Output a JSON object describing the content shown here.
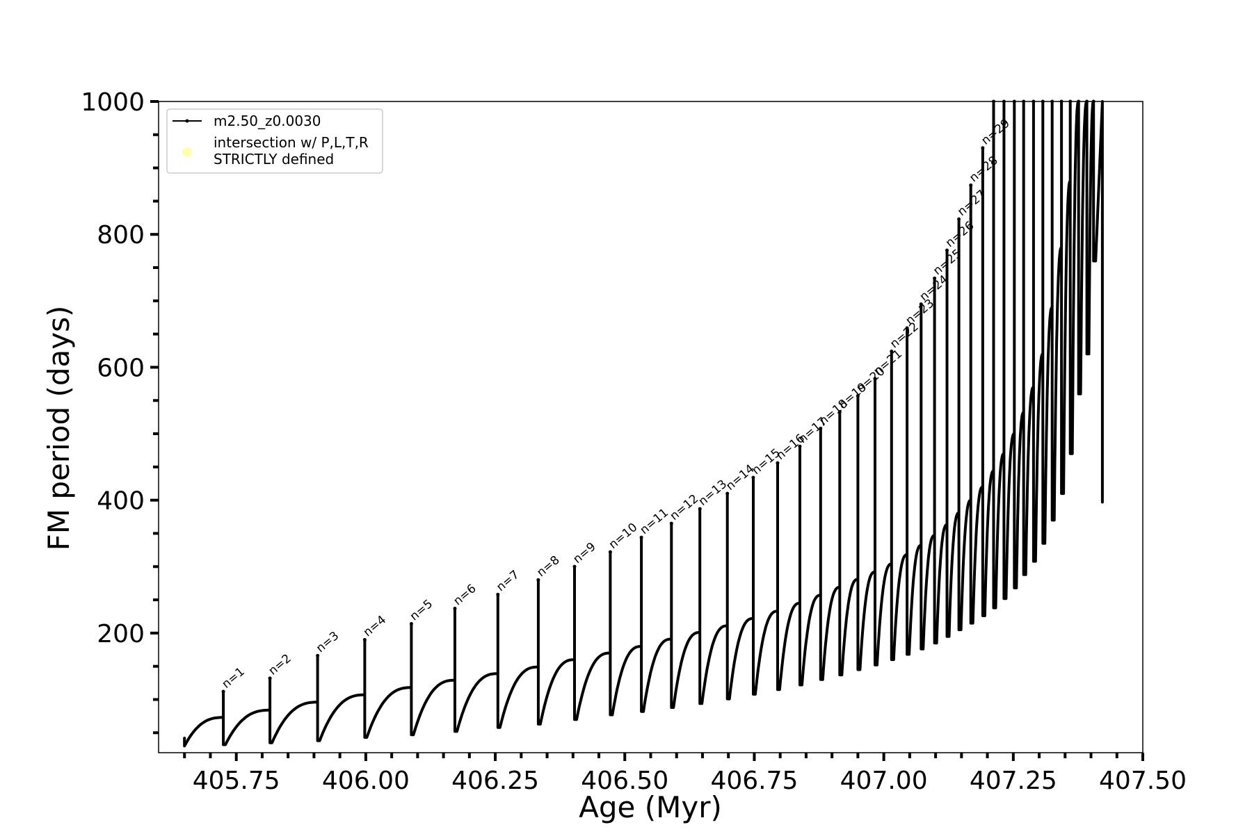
{
  "chart_data": {
    "type": "line",
    "xlabel": "Age (Myr)",
    "ylabel": "FM period (days)",
    "xlim": [
      405.6,
      407.5
    ],
    "ylim": [
      20,
      1000
    ],
    "x_ticks": [
      405.75,
      406.0,
      406.25,
      406.5,
      406.75,
      407.0,
      407.25,
      407.5
    ],
    "x_tick_labels": [
      "405.75",
      "406.00",
      "406.25",
      "406.50",
      "406.75",
      "407.00",
      "407.25",
      "407.50"
    ],
    "x_minor_step": 0.05,
    "y_ticks": [
      200,
      400,
      600,
      800,
      1000
    ],
    "y_tick_labels": [
      "200",
      "400",
      "600",
      "800",
      "1000"
    ],
    "y_minor_step": 50,
    "grid": false,
    "legend_position": "top-left",
    "legend": [
      {
        "label": "m2.50_z0.0030",
        "color": "#000000",
        "marker": "line-dot"
      },
      {
        "label": "intersection w/ P,L,T,R\nSTRICTLY defined",
        "color": "#ffffb3",
        "marker": "dot"
      }
    ],
    "start": {
      "age": 405.65,
      "period_low": 30,
      "period_high": 42
    },
    "pulses": [
      {
        "label": "n=1",
        "age": 405.725,
        "base": 73,
        "peak": 112,
        "dip": 32
      },
      {
        "label": "n=2",
        "age": 405.815,
        "base": 84,
        "peak": 132,
        "dip": 35
      },
      {
        "label": "n=3",
        "age": 405.907,
        "base": 96,
        "peak": 166,
        "dip": 38
      },
      {
        "label": "n=4",
        "age": 405.998,
        "base": 107,
        "peak": 190,
        "dip": 43
      },
      {
        "label": "n=5",
        "age": 406.088,
        "base": 118,
        "peak": 214,
        "dip": 47
      },
      {
        "label": "n=6",
        "age": 406.172,
        "base": 129,
        "peak": 237,
        "dip": 52
      },
      {
        "label": "n=7",
        "age": 406.255,
        "base": 139,
        "peak": 258,
        "dip": 58
      },
      {
        "label": "n=8",
        "age": 406.333,
        "base": 149,
        "peak": 280,
        "dip": 63
      },
      {
        "label": "n=9",
        "age": 406.403,
        "base": 160,
        "peak": 300,
        "dip": 70
      },
      {
        "label": "n=10",
        "age": 406.472,
        "base": 170,
        "peak": 322,
        "dip": 77
      },
      {
        "label": "n=11",
        "age": 406.532,
        "base": 180,
        "peak": 344,
        "dip": 82
      },
      {
        "label": "n=12",
        "age": 406.59,
        "base": 191,
        "peak": 365,
        "dip": 88
      },
      {
        "label": "n=13",
        "age": 406.645,
        "base": 201,
        "peak": 387,
        "dip": 94
      },
      {
        "label": "n=14",
        "age": 406.698,
        "base": 211,
        "peak": 410,
        "dip": 101
      },
      {
        "label": "n=15",
        "age": 406.748,
        "base": 222,
        "peak": 434,
        "dip": 108
      },
      {
        "label": "n=16",
        "age": 406.795,
        "base": 233,
        "peak": 456,
        "dip": 115
      },
      {
        "label": "n=17",
        "age": 406.838,
        "base": 245,
        "peak": 481,
        "dip": 122
      },
      {
        "label": "n=18",
        "age": 406.878,
        "base": 257,
        "peak": 508,
        "dip": 130
      },
      {
        "label": "n=19",
        "age": 406.915,
        "base": 269,
        "peak": 533,
        "dip": 137
      },
      {
        "label": "n=20",
        "age": 406.95,
        "base": 281,
        "peak": 557,
        "dip": 145
      },
      {
        "label": "n=21",
        "age": 406.983,
        "base": 292,
        "peak": 583,
        "dip": 152
      },
      {
        "label": "n=22",
        "age": 407.015,
        "base": 304,
        "peak": 624,
        "dip": 160
      },
      {
        "label": "n=23",
        "age": 407.045,
        "base": 318,
        "peak": 659,
        "dip": 168
      },
      {
        "label": "n=24",
        "age": 407.072,
        "base": 332,
        "peak": 695,
        "dip": 176
      },
      {
        "label": "n=25",
        "age": 407.098,
        "base": 347,
        "peak": 734,
        "dip": 185
      },
      {
        "label": "n=26",
        "age": 407.122,
        "base": 363,
        "peak": 776,
        "dip": 195
      },
      {
        "label": "n=27",
        "age": 407.145,
        "base": 381,
        "peak": 823,
        "dip": 205
      },
      {
        "label": "n=28",
        "age": 407.168,
        "base": 400,
        "peak": 874,
        "dip": 215
      },
      {
        "label": "n=29",
        "age": 407.191,
        "base": 420,
        "peak": 930,
        "dip": 226
      },
      {
        "label": "",
        "age": 407.212,
        "base": 444,
        "peak": 1000,
        "dip": 238
      },
      {
        "label": "",
        "age": 407.232,
        "base": 470,
        "peak": 1000,
        "dip": 252
      },
      {
        "label": "",
        "age": 407.252,
        "base": 500,
        "peak": 1000,
        "dip": 268
      },
      {
        "label": "",
        "age": 407.27,
        "base": 532,
        "peak": 1000,
        "dip": 288
      },
      {
        "label": "",
        "age": 407.289,
        "base": 570,
        "peak": 1000,
        "dip": 308
      },
      {
        "label": "",
        "age": 407.307,
        "base": 620,
        "peak": 1000,
        "dip": 335
      },
      {
        "label": "",
        "age": 407.325,
        "base": 690,
        "peak": 1000,
        "dip": 370
      },
      {
        "label": "",
        "age": 407.343,
        "base": 780,
        "peak": 1000,
        "dip": 410
      },
      {
        "label": "",
        "age": 407.36,
        "base": 880,
        "peak": 1000,
        "dip": 470
      },
      {
        "label": "",
        "age": 407.376,
        "base": 1000,
        "peak": 1000,
        "dip": 560
      },
      {
        "label": "",
        "age": 407.392,
        "base": 1000,
        "peak": 1000,
        "dip": 620
      },
      {
        "label": "",
        "age": 407.405,
        "base": 1000,
        "peak": 1000,
        "dip": 760
      }
    ],
    "end": {
      "age": 407.422,
      "period_low": 397,
      "period_high": 1000
    }
  }
}
